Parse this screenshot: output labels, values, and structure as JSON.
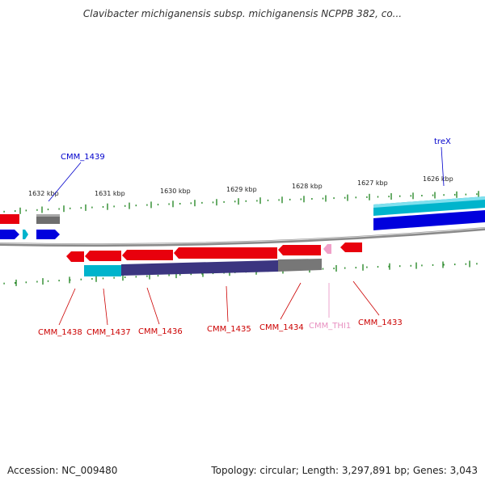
{
  "title": "Clavibacter michiganensis subsp. michiganensis NCPPB 382, co...",
  "footer": {
    "accession": "Accession: NC_009480",
    "stats": "Topology: circular; Length: 3,297,891 bp; Genes: 3,043"
  },
  "colors": {
    "red": "#e8000d",
    "blue": "#0000dd",
    "cyan": "#00b4cc",
    "gray": "#777777",
    "navy": "#3b3580",
    "pink": "#f0a0c8",
    "backbone": "#888888",
    "tick": "#2a8a2a",
    "label_red": "#cc0000",
    "label_blue": "#0000cc",
    "label_pink": "#e890c0"
  },
  "ruler": {
    "ticks": [
      {
        "label": "1632 kbp"
      },
      {
        "label": "1631 kbp"
      },
      {
        "label": "1630 kbp"
      },
      {
        "label": "1629 kbp"
      },
      {
        "label": "1628 kbp"
      },
      {
        "label": "1627 kbp"
      },
      {
        "label": "1626 kbp"
      }
    ]
  },
  "genes": {
    "cmm1439": "CMM_1439",
    "trex": "treX",
    "cmm1438": "CMM_1438",
    "cmm1437": "CMM_1437",
    "cmm1436": "CMM_1436",
    "cmm1435": "CMM_1435",
    "cmm1434": "CMM_1434",
    "cmmthi1": "CMM_THI1",
    "cmm1433": "CMM_1433"
  }
}
